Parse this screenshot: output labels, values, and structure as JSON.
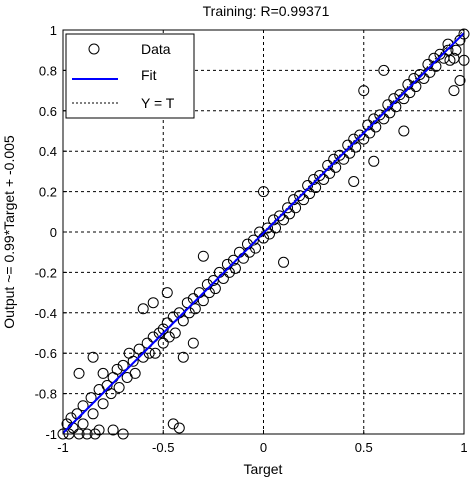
{
  "chart_data": {
    "type": "scatter",
    "title": "Training: R=0.99371",
    "xlabel": "Target",
    "ylabel": "Output ~= 0.99*Target + -0.005",
    "xlim": [
      -1,
      1
    ],
    "ylim": [
      -1,
      1
    ],
    "x_ticks": [
      "-1",
      "-0.5",
      "0",
      "0.5",
      "1"
    ],
    "y_ticks": [
      "-1",
      "-0.8",
      "-0.6",
      "-0.4",
      "-0.2",
      "0",
      "0.2",
      "0.4",
      "0.6",
      "0.8",
      "1"
    ],
    "grid": true,
    "legend_placement": "top-left",
    "legend": [
      "Data",
      "Fit",
      "Y = T"
    ],
    "fit": {
      "slope": 0.99,
      "intercept": -0.005,
      "color": "#0000ff"
    },
    "identity_line": {
      "style": "dotted",
      "color": "#000000"
    },
    "marker": {
      "shape": "circle",
      "fill": "none",
      "stroke": "#000000"
    },
    "series": [
      {
        "name": "Data",
        "points": [
          [
            -1.0,
            -1.0
          ],
          [
            -0.98,
            -0.95
          ],
          [
            -0.97,
            -1.0
          ],
          [
            -0.96,
            -0.92
          ],
          [
            -0.95,
            -0.97
          ],
          [
            -0.93,
            -0.9
          ],
          [
            -0.92,
            -1.0
          ],
          [
            -0.9,
            -0.86
          ],
          [
            -0.9,
            -0.95
          ],
          [
            -0.88,
            -1.0
          ],
          [
            -0.86,
            -0.82
          ],
          [
            -0.85,
            -0.9
          ],
          [
            -0.84,
            -1.0
          ],
          [
            -0.82,
            -0.78
          ],
          [
            -0.8,
            -0.85
          ],
          [
            -0.8,
            -0.7
          ],
          [
            -0.78,
            -0.76
          ],
          [
            -0.76,
            -0.8
          ],
          [
            -0.75,
            -0.72
          ],
          [
            -0.73,
            -0.68
          ],
          [
            -0.72,
            -0.77
          ],
          [
            -0.7,
            -0.66
          ],
          [
            -0.68,
            -0.72
          ],
          [
            -0.67,
            -0.6
          ],
          [
            -0.65,
            -0.64
          ],
          [
            -0.64,
            -0.7
          ],
          [
            -0.62,
            -0.58
          ],
          [
            -0.6,
            -0.62
          ],
          [
            -0.58,
            -0.55
          ],
          [
            -0.57,
            -0.6
          ],
          [
            -0.55,
            -0.52
          ],
          [
            -0.54,
            -0.6
          ],
          [
            -0.52,
            -0.5
          ],
          [
            -0.5,
            -0.48
          ],
          [
            -0.5,
            -0.55
          ],
          [
            -0.48,
            -0.45
          ],
          [
            -0.47,
            -0.52
          ],
          [
            -0.45,
            -0.42
          ],
          [
            -0.44,
            -0.5
          ],
          [
            -0.42,
            -0.4
          ],
          [
            -0.4,
            -0.44
          ],
          [
            -0.38,
            -0.35
          ],
          [
            -0.37,
            -0.4
          ],
          [
            -0.35,
            -0.33
          ],
          [
            -0.34,
            -0.38
          ],
          [
            -0.32,
            -0.3
          ],
          [
            -0.3,
            -0.34
          ],
          [
            -0.28,
            -0.26
          ],
          [
            -0.27,
            -0.3
          ],
          [
            -0.25,
            -0.24
          ],
          [
            -0.24,
            -0.28
          ],
          [
            -0.22,
            -0.2
          ],
          [
            -0.2,
            -0.23
          ],
          [
            -0.18,
            -0.16
          ],
          [
            -0.17,
            -0.2
          ],
          [
            -0.15,
            -0.14
          ],
          [
            -0.14,
            -0.18
          ],
          [
            -0.12,
            -0.1
          ],
          [
            -0.1,
            -0.13
          ],
          [
            -0.08,
            -0.06
          ],
          [
            -0.07,
            -0.1
          ],
          [
            -0.05,
            -0.04
          ],
          [
            -0.04,
            -0.08
          ],
          [
            -0.02,
            0.0
          ],
          [
            0.0,
            -0.03
          ],
          [
            0.02,
            0.02
          ],
          [
            0.03,
            -0.01
          ],
          [
            0.05,
            0.06
          ],
          [
            0.06,
            0.02
          ],
          [
            0.08,
            0.08
          ],
          [
            0.1,
            0.06
          ],
          [
            0.12,
            0.12
          ],
          [
            0.13,
            0.09
          ],
          [
            0.15,
            0.16
          ],
          [
            0.16,
            0.12
          ],
          [
            0.18,
            0.18
          ],
          [
            0.2,
            0.16
          ],
          [
            0.22,
            0.23
          ],
          [
            0.23,
            0.19
          ],
          [
            0.25,
            0.26
          ],
          [
            0.26,
            0.22
          ],
          [
            0.28,
            0.28
          ],
          [
            0.3,
            0.26
          ],
          [
            0.32,
            0.33
          ],
          [
            0.33,
            0.29
          ],
          [
            0.35,
            0.36
          ],
          [
            0.36,
            0.32
          ],
          [
            0.38,
            0.38
          ],
          [
            0.4,
            0.36
          ],
          [
            0.42,
            0.43
          ],
          [
            0.43,
            0.39
          ],
          [
            0.45,
            0.46
          ],
          [
            0.46,
            0.42
          ],
          [
            0.48,
            0.48
          ],
          [
            0.5,
            0.46
          ],
          [
            0.52,
            0.53
          ],
          [
            0.53,
            0.49
          ],
          [
            0.55,
            0.56
          ],
          [
            0.56,
            0.52
          ],
          [
            0.58,
            0.58
          ],
          [
            0.6,
            0.56
          ],
          [
            0.62,
            0.63
          ],
          [
            0.63,
            0.59
          ],
          [
            0.65,
            0.66
          ],
          [
            0.66,
            0.62
          ],
          [
            0.68,
            0.68
          ],
          [
            0.7,
            0.66
          ],
          [
            0.72,
            0.73
          ],
          [
            0.73,
            0.69
          ],
          [
            0.75,
            0.76
          ],
          [
            0.76,
            0.72
          ],
          [
            0.78,
            0.78
          ],
          [
            0.8,
            0.76
          ],
          [
            0.82,
            0.83
          ],
          [
            0.83,
            0.79
          ],
          [
            0.85,
            0.86
          ],
          [
            0.86,
            0.82
          ],
          [
            0.88,
            0.88
          ],
          [
            0.9,
            0.86
          ],
          [
            0.92,
            0.93
          ],
          [
            0.93,
            0.85
          ],
          [
            0.95,
            0.86
          ],
          [
            0.96,
            0.9
          ],
          [
            0.98,
            0.95
          ],
          [
            1.0,
            0.98
          ],
          [
            -0.92,
            -0.7
          ],
          [
            -0.85,
            -0.62
          ],
          [
            -0.6,
            -0.38
          ],
          [
            -0.55,
            -0.35
          ],
          [
            -0.48,
            -0.3
          ],
          [
            -0.4,
            -0.62
          ],
          [
            -0.35,
            -0.55
          ],
          [
            -0.3,
            -0.12
          ],
          [
            0.0,
            0.2
          ],
          [
            0.1,
            -0.15
          ],
          [
            0.45,
            0.25
          ],
          [
            0.5,
            0.7
          ],
          [
            0.55,
            0.35
          ],
          [
            0.6,
            0.8
          ],
          [
            0.7,
            0.5
          ],
          [
            -0.45,
            -0.95
          ],
          [
            -0.42,
            -0.97
          ],
          [
            -0.75,
            -0.98
          ],
          [
            -0.7,
            -1.0
          ],
          [
            -0.82,
            -0.98
          ],
          [
            0.95,
            0.7
          ],
          [
            0.98,
            0.75
          ],
          [
            1.0,
            0.85
          ],
          [
            0.92,
            0.9
          ]
        ]
      }
    ]
  }
}
